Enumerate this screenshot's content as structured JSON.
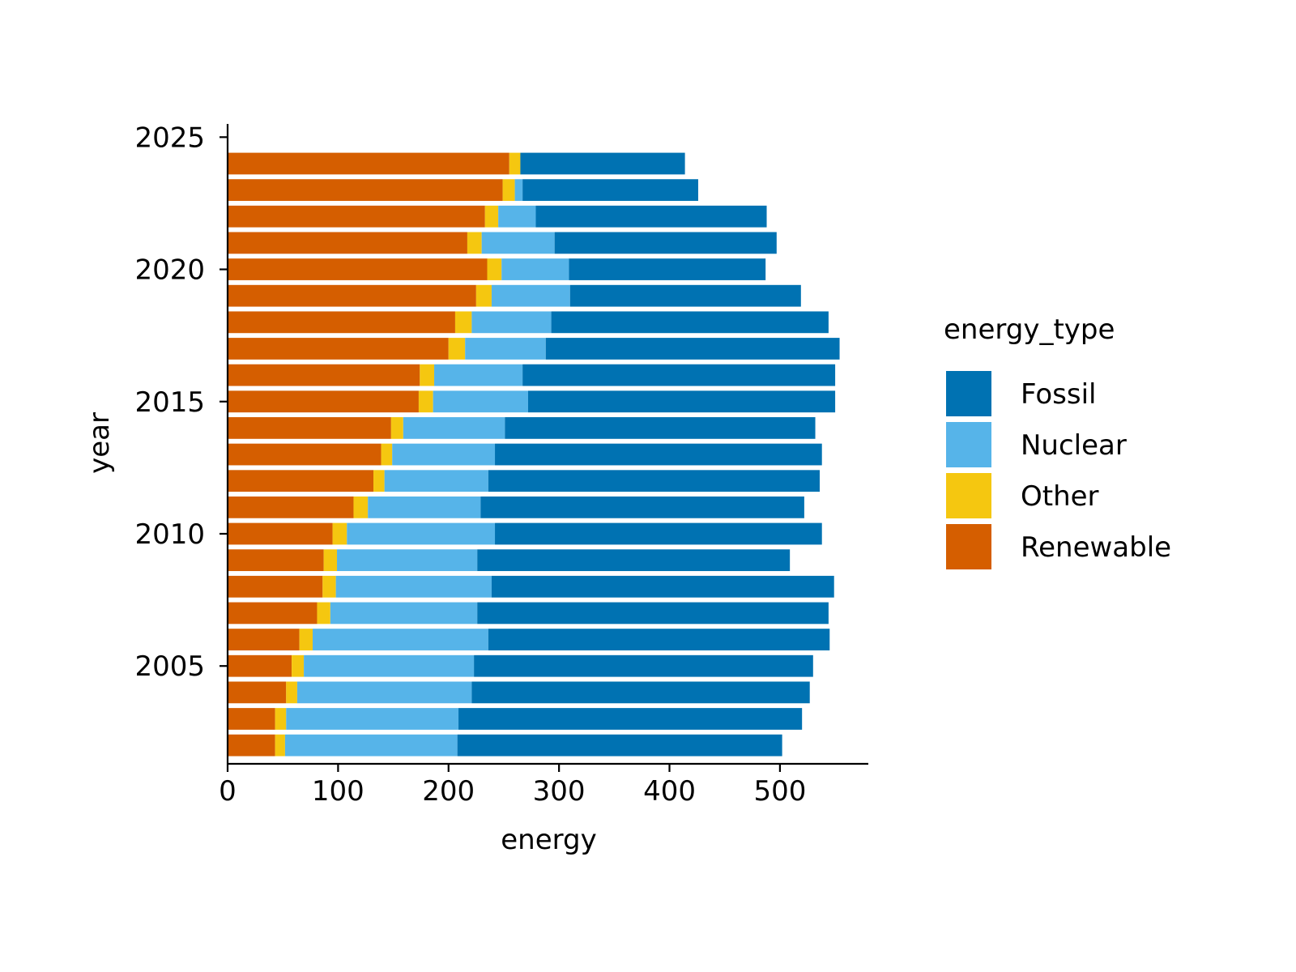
{
  "chart_data": {
    "type": "bar",
    "orientation": "horizontal",
    "stacked": true,
    "xlabel": "energy",
    "ylabel": "year",
    "xlim": [
      0,
      580
    ],
    "ylim": [
      2001.3,
      2025.5
    ],
    "xticks": [
      0,
      100,
      200,
      300,
      400,
      500
    ],
    "xtick_labels": [
      "0",
      "100",
      "200",
      "300",
      "400",
      "500"
    ],
    "yticks": [
      2005,
      2010,
      2015,
      2020,
      2025
    ],
    "ytick_labels": [
      "2005",
      "2010",
      "2015",
      "2020",
      "2025"
    ],
    "grid": false,
    "legend": {
      "title": "energy_type",
      "placement": "right",
      "entries": [
        "Fossil",
        "Nuclear",
        "Other",
        "Renewable"
      ]
    },
    "categories": [
      2002,
      2003,
      2004,
      2005,
      2006,
      2007,
      2008,
      2009,
      2010,
      2011,
      2012,
      2013,
      2014,
      2015,
      2016,
      2017,
      2018,
      2019,
      2020,
      2021,
      2022,
      2023,
      2024
    ],
    "stack_order": [
      "Renewable",
      "Other",
      "Nuclear",
      "Fossil"
    ],
    "series": [
      {
        "name": "Renewable",
        "color": "#d55e00",
        "values": [
          43,
          43,
          53,
          58,
          65,
          81,
          86,
          87,
          95,
          114,
          132,
          139,
          148,
          173,
          174,
          200,
          206,
          225,
          235,
          217,
          233,
          249,
          255
        ]
      },
      {
        "name": "Other",
        "color": "#f5c710",
        "values": [
          9,
          10,
          10,
          11,
          12,
          12,
          12,
          12,
          13,
          13,
          10,
          10,
          11,
          13,
          13,
          15,
          15,
          14,
          13,
          13,
          12,
          11,
          10
        ]
      },
      {
        "name": "Nuclear",
        "color": "#56b4e9",
        "values": [
          156,
          156,
          158,
          154,
          159,
          133,
          141,
          127,
          134,
          102,
          94,
          93,
          92,
          86,
          80,
          73,
          72,
          71,
          61,
          66,
          34,
          7,
          0
        ]
      },
      {
        "name": "Fossil",
        "color": "#0072b2",
        "values": [
          294,
          311,
          306,
          307,
          309,
          318,
          310,
          283,
          296,
          293,
          300,
          296,
          281,
          278,
          283,
          266,
          251,
          209,
          178,
          201,
          209,
          159,
          149
        ]
      }
    ]
  }
}
